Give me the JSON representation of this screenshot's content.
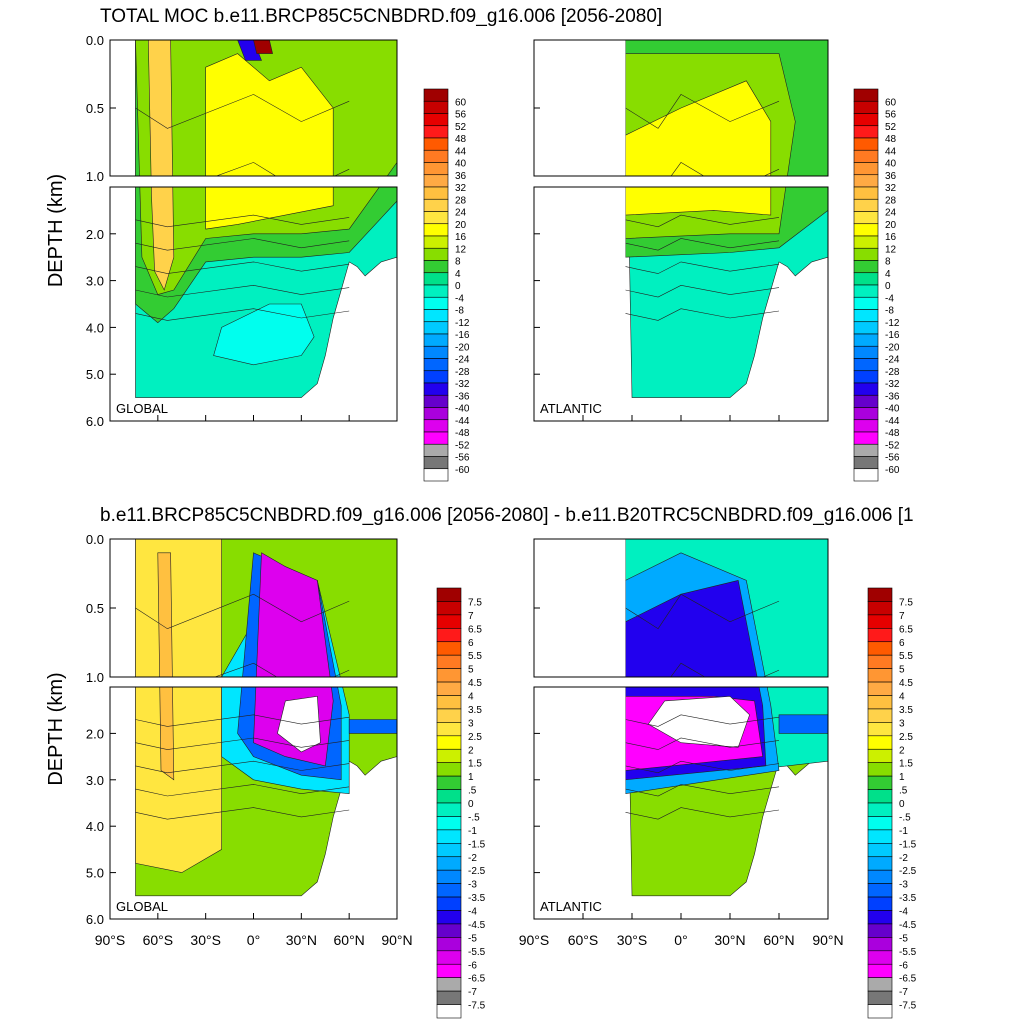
{
  "figure": {
    "top_title": "TOTAL MOC b.e11.BRCP85C5CNBDRD.f09_g16.006 [2056-2080]",
    "bottom_title": "b.e11.BRCP85C5CNBDRD.f09_g16.006 [2056-2080] - b.e11.B20TRC5CNBDRD.f09_g16.006 [1",
    "ylabel": "DEPTH (km)"
  },
  "chart_data": [
    {
      "type": "heatmap",
      "panel": "top-left",
      "label": "GLOBAL",
      "ylabel": "DEPTH (km)",
      "yticks": [
        "0.0",
        "0.5",
        "1.0",
        "2.0",
        "3.0",
        "4.0",
        "5.0",
        "6.0"
      ],
      "xticks": [],
      "colorbar": [
        "60",
        "56",
        "52",
        "48",
        "44",
        "40",
        "36",
        "32",
        "28",
        "24",
        "20",
        "16",
        "12",
        "8",
        "4",
        "0",
        "-4",
        "-8",
        "-12",
        "-16",
        "-20",
        "-24",
        "-28",
        "-32",
        "-36",
        "-40",
        "-44",
        "-48",
        "-52",
        "-56",
        "-60"
      ]
    },
    {
      "type": "heatmap",
      "panel": "top-right",
      "label": "ATLANTIC",
      "yticks": [],
      "xticks": [],
      "colorbar": [
        "60",
        "56",
        "52",
        "48",
        "44",
        "40",
        "36",
        "32",
        "28",
        "24",
        "20",
        "16",
        "12",
        "8",
        "4",
        "0",
        "-4",
        "-8",
        "-12",
        "-16",
        "-20",
        "-24",
        "-28",
        "-32",
        "-36",
        "-40",
        "-44",
        "-48",
        "-52",
        "-56",
        "-60"
      ]
    },
    {
      "type": "heatmap",
      "panel": "bottom-left",
      "label": "GLOBAL",
      "ylabel": "DEPTH (km)",
      "yticks": [
        "0.0",
        "0.5",
        "1.0",
        "2.0",
        "3.0",
        "4.0",
        "5.0",
        "6.0"
      ],
      "xticks": [
        "90°S",
        "60°S",
        "30°S",
        "0°",
        "30°N",
        "60°N",
        "90°N"
      ],
      "colorbar": [
        "7.5",
        "7",
        "6.5",
        "6",
        "5.5",
        "5",
        "4.5",
        "4",
        "3.5",
        "3",
        "2.5",
        "2",
        "1.5",
        "1",
        ".5",
        "0",
        "-.5",
        "-1",
        "-1.5",
        "-2",
        "-2.5",
        "-3",
        "-3.5",
        "-4",
        "-4.5",
        "-5",
        "-5.5",
        "-6",
        "-6.5",
        "-7",
        "-7.5"
      ]
    },
    {
      "type": "heatmap",
      "panel": "bottom-right",
      "label": "ATLANTIC",
      "yticks": [],
      "xticks": [
        "90°S",
        "60°S",
        "30°S",
        "0°",
        "30°N",
        "60°N",
        "90°N"
      ],
      "colorbar": [
        "7.5",
        "7",
        "6.5",
        "6",
        "5.5",
        "5",
        "4.5",
        "4",
        "3.5",
        "3",
        "2.5",
        "2",
        "1.5",
        "1",
        ".5",
        "0",
        "-.5",
        "-1",
        "-1.5",
        "-2",
        "-2.5",
        "-3",
        "-3.5",
        "-4",
        "-4.5",
        "-5",
        "-5.5",
        "-6",
        "-6.5",
        "-7",
        "-7.5"
      ]
    }
  ]
}
